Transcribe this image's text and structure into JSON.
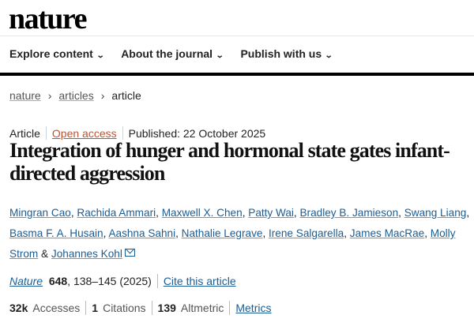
{
  "brand": {
    "logo": "nature"
  },
  "nav": {
    "items": [
      {
        "label": "Explore content"
      },
      {
        "label": "About the journal"
      },
      {
        "label": "Publish with us"
      }
    ]
  },
  "breadcrumb": {
    "items": [
      "nature",
      "articles",
      "article"
    ]
  },
  "article": {
    "type": "Article",
    "access": "Open access",
    "published": "Published: 22 October 2025",
    "title": "Integration of hunger and hormonal state gates infant-directed aggression",
    "authors": [
      "Mingran Cao",
      "Rachida Ammari",
      "Maxwell X. Chen",
      "Patty Wai",
      "Bradley B. Jamieson",
      "Swang Liang",
      "Basma F. A. Husain",
      "Aashna Sahni",
      "Nathalie Legrave",
      "Irene Salgarella",
      "James MacRae",
      "Molly Strom",
      "Johannes Kohl"
    ],
    "author_conjunction": "&",
    "journal": "Nature",
    "volume": "648",
    "pages_year": ", 138–145 (2025)",
    "cite_label": "Cite this article"
  },
  "metrics": {
    "accesses_value": "32k",
    "accesses_label": "Accesses",
    "citations_value": "1",
    "citations_label": "Citations",
    "altmetric_value": "139",
    "altmetric_label": "Altmetric",
    "metrics_link": "Metrics"
  },
  "colors": {
    "link": "#1a5d96",
    "open_access": "#c4502a"
  }
}
